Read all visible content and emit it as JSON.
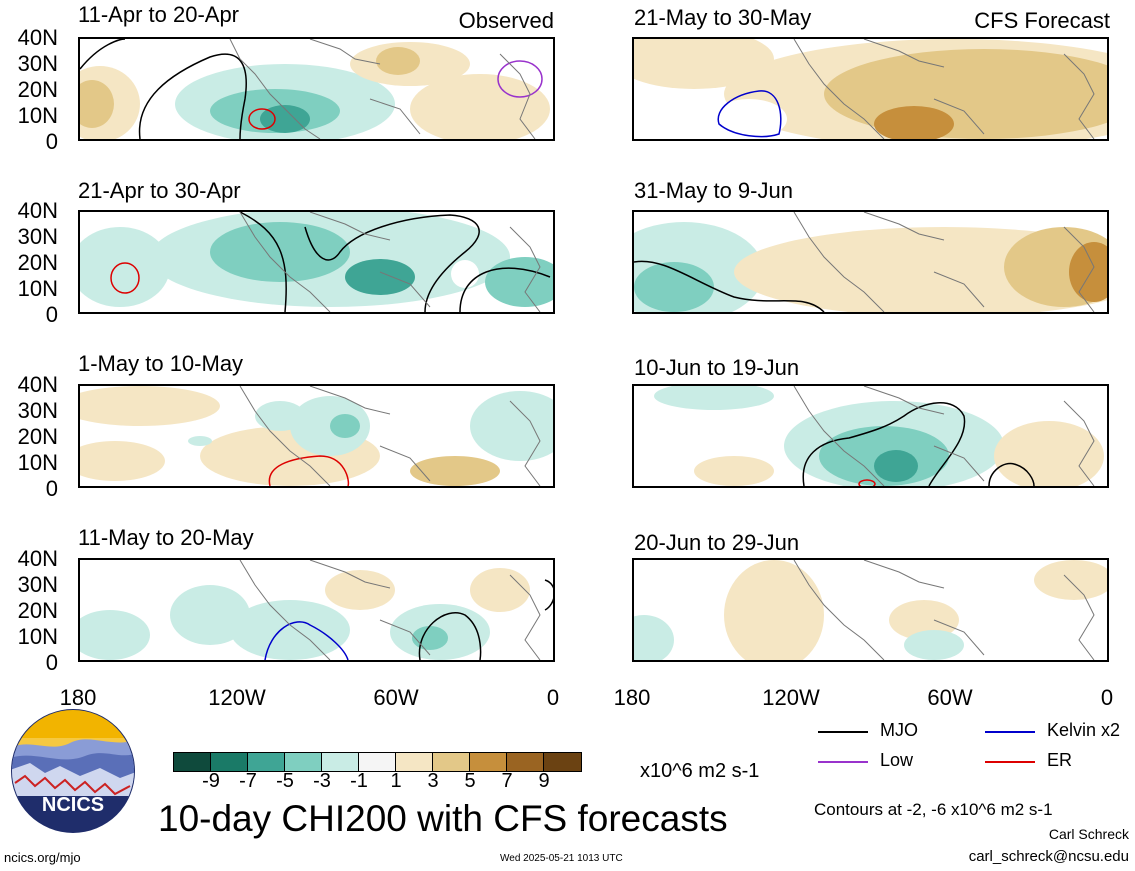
{
  "observed_label": "Observed",
  "forecast_label": "CFS Forecast",
  "panels_left": [
    {
      "title": "11-Apr to 20-Apr"
    },
    {
      "title": "21-Apr to 30-Apr"
    },
    {
      "title": "1-May to 10-May"
    },
    {
      "title": "11-May to 20-May"
    }
  ],
  "panels_right": [
    {
      "title": "21-May to 30-May"
    },
    {
      "title": "31-May to 9-Jun"
    },
    {
      "title": "10-Jun to 19-Jun"
    },
    {
      "title": "20-Jun to 29-Jun"
    }
  ],
  "y_ticks": [
    "40N",
    "30N",
    "20N",
    "10N",
    "0"
  ],
  "x_ticks": [
    "180",
    "120W",
    "60W",
    "0"
  ],
  "colorbar": {
    "colors": [
      "#0f4a3c",
      "#1a7a67",
      "#3fa595",
      "#7fcfc0",
      "#c9ece5",
      "#f5f5f5",
      "#f5e6c4",
      "#e3c888",
      "#c68f3c",
      "#9a6422",
      "#6b4212"
    ],
    "labels": [
      "-9",
      "-7",
      "-5",
      "-3",
      "-1",
      "1",
      "3",
      "5",
      "7",
      "9"
    ],
    "units": "x10^6 m2 s-1"
  },
  "legend": [
    {
      "label": "MJO",
      "color": "#000000"
    },
    {
      "label": "Kelvin x2",
      "color": "#0000cc"
    },
    {
      "label": "Low",
      "color": "#9933cc"
    },
    {
      "label": "ER",
      "color": "#dd0000"
    }
  ],
  "main_title": "10-day CHI200 with CFS forecasts",
  "contours_note": "Contours at -2, -6 x10^6 m2 s-1",
  "author": "Carl Schreck",
  "email": "carl_schreck@ncsu.edu",
  "site": "ncics.org/mjo",
  "timestamp": "Wed 2025-05-21 1013 UTC",
  "logo_text": "NCICS",
  "palette": {
    "teal_light": "#c9ece5",
    "teal": "#7fcfc0",
    "teal_dark": "#3fa595",
    "tan_light": "#f5e6c4",
    "tan": "#e3c888",
    "brown": "#c68f3c",
    "land": "#777777"
  }
}
